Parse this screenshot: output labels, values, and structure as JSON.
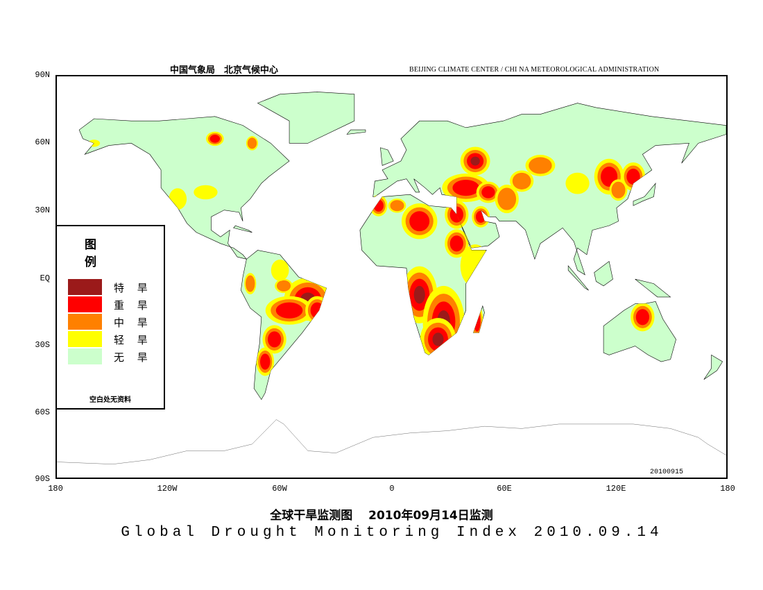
{
  "header": {
    "left_cn": "中国气象局　北京气候中心",
    "right_en": "BEIJING CLIMATE CENTER / CHI NA METEOROLOGICAL ADMINISTRATION"
  },
  "axes": {
    "lat_labels": [
      "90N",
      "60N",
      "30N",
      "EQ",
      "30S",
      "60S",
      "90S"
    ],
    "lon_labels": [
      "180",
      "120W",
      "60W",
      "0",
      "60E",
      "120E",
      "180"
    ]
  },
  "date_stamp": "20100915",
  "legend": {
    "title": "图　例",
    "items": [
      {
        "label": "特 旱",
        "color": "#9b1a1a"
      },
      {
        "label": "重 旱",
        "color": "#ff0000"
      },
      {
        "label": "中 旱",
        "color": "#ff8000"
      },
      {
        "label": "轻 旱",
        "color": "#ffff00"
      },
      {
        "label": "无 旱",
        "color": "#ccffcc"
      }
    ],
    "note": "空白处无资料"
  },
  "title_cn": "全球干旱监测图　 2010年09月14日监测",
  "title_en": "Global Drought Monitoring Index  2010.09.14"
}
